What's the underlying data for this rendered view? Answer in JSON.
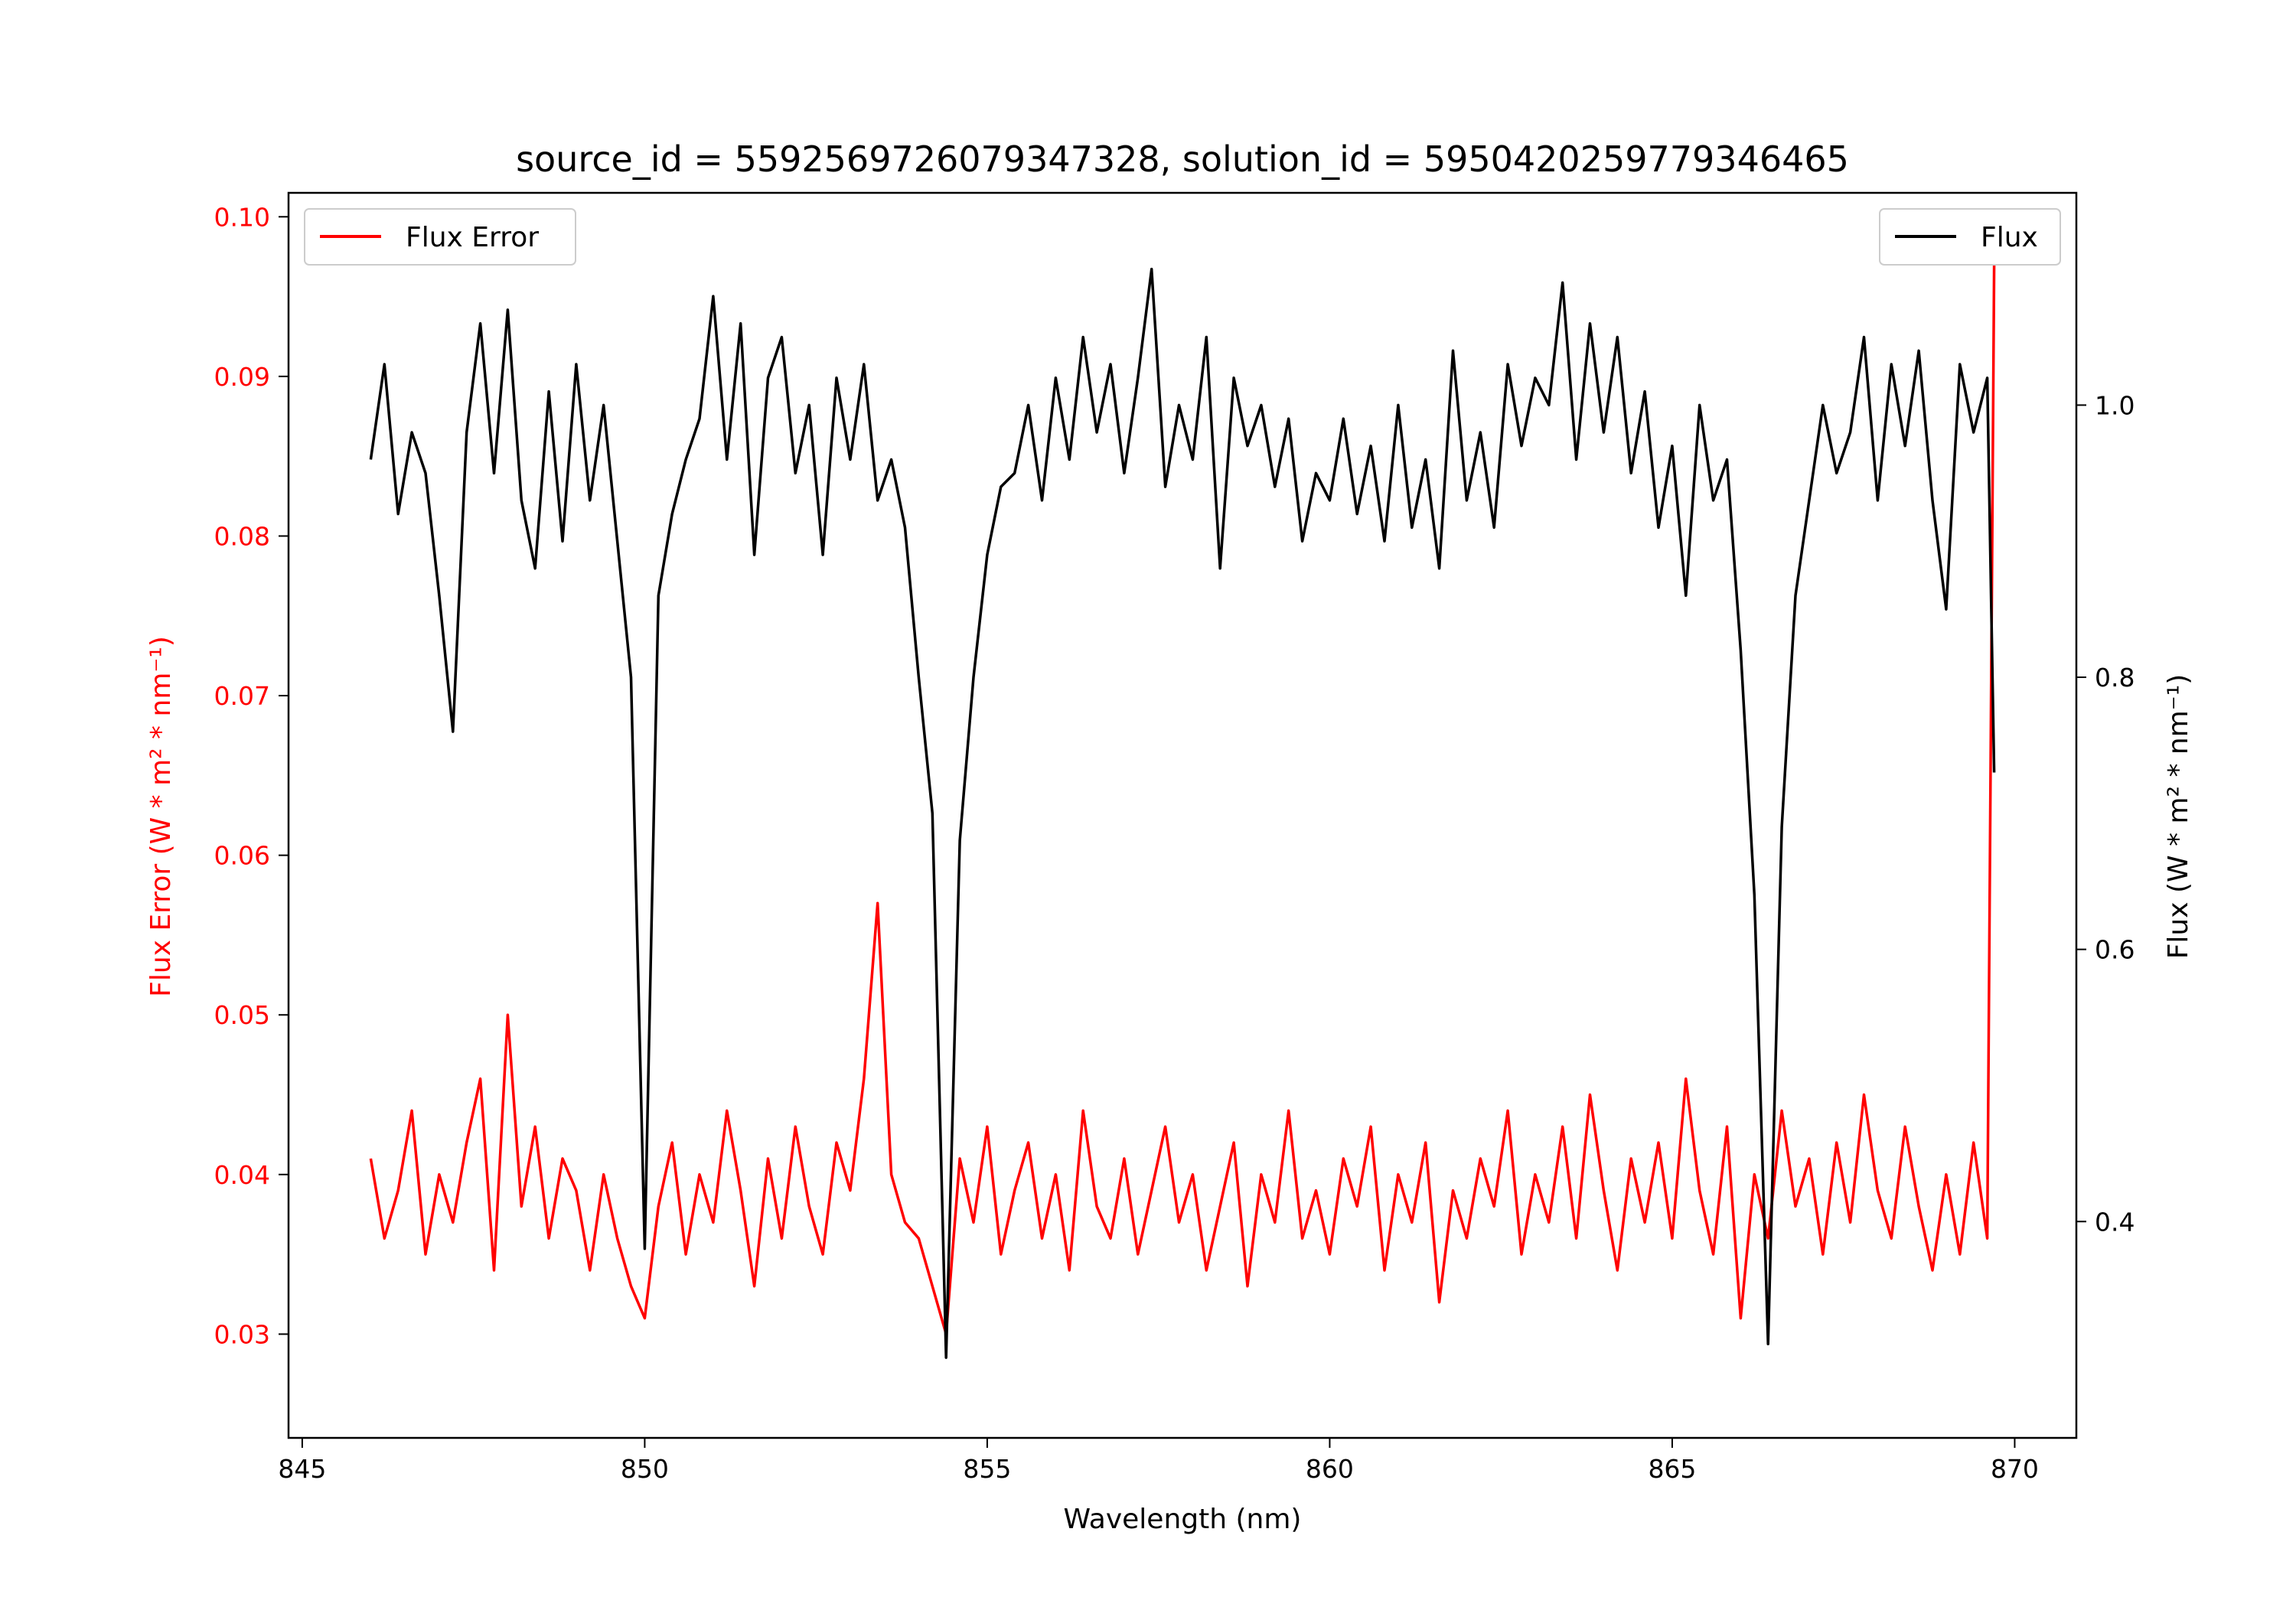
{
  "chart_data": {
    "type": "line",
    "title": "source_id = 5592569726079347328, solution_id = 5950420259779346465",
    "xlabel": "Wavelength (nm)",
    "ylabel_left": "Flux Error (W * m² * nm⁻¹)",
    "ylabel_right": "Flux (W * m² * nm⁻¹)",
    "xlim": [
      844.8,
      870.9
    ],
    "ylim_left": [
      0.0235,
      0.1015
    ],
    "ylim_right": [
      0.241,
      1.156
    ],
    "xticks": [
      845,
      850,
      855,
      860,
      865,
      870
    ],
    "xtick_labels": [
      "845",
      "850",
      "855",
      "860",
      "865",
      "870"
    ],
    "yticks_left": [
      0.03,
      0.04,
      0.05,
      0.06,
      0.07,
      0.08,
      0.09,
      0.1
    ],
    "ytick_labels_left": [
      "0.03",
      "0.04",
      "0.05",
      "0.06",
      "0.07",
      "0.08",
      "0.09",
      "0.10"
    ],
    "yticks_right": [
      0.4,
      0.6,
      0.8,
      1.0
    ],
    "ytick_labels_right": [
      "0.4",
      "0.6",
      "0.8",
      "1.0"
    ],
    "grid": false,
    "x": [
      846.0,
      846.2,
      846.4,
      846.6,
      846.8,
      847.0,
      847.2,
      847.4,
      847.6,
      847.8,
      848.0,
      848.2,
      848.4,
      848.6,
      848.8,
      849.0,
      849.2,
      849.4,
      849.6,
      849.8,
      850.0,
      850.2,
      850.4,
      850.6,
      850.8,
      851.0,
      851.2,
      851.4,
      851.6,
      851.8,
      852.0,
      852.2,
      852.4,
      852.6,
      852.8,
      853.0,
      853.2,
      853.4,
      853.6,
      853.8,
      854.0,
      854.2,
      854.4,
      854.6,
      854.8,
      855.0,
      855.2,
      855.4,
      855.6,
      855.8,
      856.0,
      856.2,
      856.4,
      856.6,
      856.8,
      857.0,
      857.2,
      857.4,
      857.6,
      857.8,
      858.0,
      858.2,
      858.4,
      858.6,
      858.8,
      859.0,
      859.2,
      859.4,
      859.6,
      859.8,
      860.0,
      860.2,
      860.4,
      860.6,
      860.8,
      861.0,
      861.2,
      861.4,
      861.6,
      861.8,
      862.0,
      862.2,
      862.4,
      862.6,
      862.8,
      863.0,
      863.2,
      863.4,
      863.6,
      863.8,
      864.0,
      864.2,
      864.4,
      864.6,
      864.8,
      865.0,
      865.2,
      865.4,
      865.6,
      865.8,
      866.0,
      866.2,
      866.4,
      866.6,
      866.8,
      867.0,
      867.2,
      867.4,
      867.6,
      867.8,
      868.0,
      868.2,
      868.4,
      868.6,
      868.8,
      869.0,
      869.2,
      869.4,
      869.6,
      869.7
    ],
    "series": [
      {
        "name": "Flux Error",
        "axis": "left",
        "color": "#ff0000",
        "legend_position": "upper-left",
        "values": [
          0.041,
          0.036,
          0.039,
          0.044,
          0.035,
          0.04,
          0.037,
          0.042,
          0.046,
          0.034,
          0.05,
          0.038,
          0.043,
          0.036,
          0.041,
          0.039,
          0.034,
          0.04,
          0.036,
          0.033,
          0.031,
          0.038,
          0.042,
          0.035,
          0.04,
          0.037,
          0.044,
          0.039,
          0.033,
          0.041,
          0.036,
          0.043,
          0.038,
          0.035,
          0.042,
          0.039,
          0.046,
          0.057,
          0.04,
          0.037,
          0.036,
          0.033,
          0.03,
          0.041,
          0.037,
          0.043,
          0.035,
          0.039,
          0.042,
          0.036,
          0.04,
          0.034,
          0.044,
          0.038,
          0.036,
          0.041,
          0.035,
          0.039,
          0.043,
          0.037,
          0.04,
          0.034,
          0.038,
          0.042,
          0.033,
          0.04,
          0.037,
          0.044,
          0.036,
          0.039,
          0.035,
          0.041,
          0.038,
          0.043,
          0.034,
          0.04,
          0.037,
          0.042,
          0.032,
          0.039,
          0.036,
          0.041,
          0.038,
          0.044,
          0.035,
          0.04,
          0.037,
          0.043,
          0.036,
          0.045,
          0.039,
          0.034,
          0.041,
          0.037,
          0.042,
          0.036,
          0.046,
          0.039,
          0.035,
          0.043,
          0.031,
          0.04,
          0.036,
          0.044,
          0.038,
          0.041,
          0.035,
          0.042,
          0.037,
          0.045,
          0.039,
          0.036,
          0.043,
          0.038,
          0.034,
          0.04,
          0.035,
          0.042,
          0.036,
          0.097
        ]
      },
      {
        "name": "Flux",
        "axis": "right",
        "color": "#000000",
        "legend_position": "upper-right",
        "values": [
          0.96,
          1.03,
          0.92,
          0.98,
          0.95,
          0.86,
          0.76,
          0.98,
          1.06,
          0.95,
          1.07,
          0.93,
          0.88,
          1.01,
          0.9,
          1.03,
          0.93,
          1.0,
          0.9,
          0.8,
          0.38,
          0.86,
          0.92,
          0.96,
          0.99,
          1.08,
          0.96,
          1.06,
          0.89,
          1.02,
          1.05,
          0.95,
          1.0,
          0.89,
          1.02,
          0.96,
          1.03,
          0.93,
          0.96,
          0.91,
          0.8,
          0.7,
          0.3,
          0.68,
          0.8,
          0.89,
          0.94,
          0.95,
          1.0,
          0.93,
          1.02,
          0.96,
          1.05,
          0.98,
          1.03,
          0.95,
          1.02,
          1.1,
          0.94,
          1.0,
          0.96,
          1.05,
          0.88,
          1.02,
          0.97,
          1.0,
          0.94,
          0.99,
          0.9,
          0.95,
          0.93,
          0.99,
          0.92,
          0.97,
          0.9,
          1.0,
          0.91,
          0.96,
          0.88,
          1.04,
          0.93,
          0.98,
          0.91,
          1.03,
          0.97,
          1.02,
          1.0,
          1.09,
          0.96,
          1.06,
          0.98,
          1.05,
          0.95,
          1.01,
          0.91,
          0.97,
          0.86,
          1.0,
          0.93,
          0.96,
          0.82,
          0.64,
          0.31,
          0.69,
          0.86,
          0.93,
          1.0,
          0.95,
          0.98,
          1.05,
          0.93,
          1.03,
          0.97,
          1.04,
          0.93,
          0.85,
          1.03,
          0.98,
          1.02,
          0.73
        ]
      }
    ]
  }
}
